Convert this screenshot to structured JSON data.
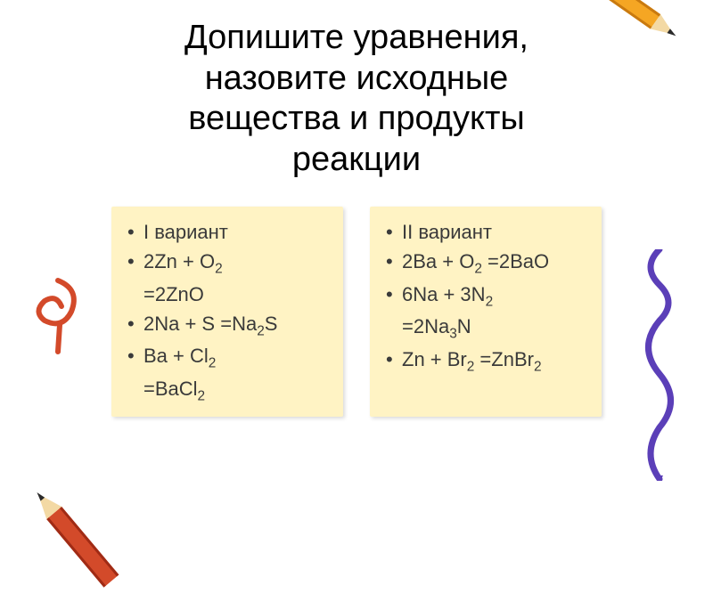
{
  "title_lines": [
    "Допишите уравнения,",
    "назовите исходные",
    "вещества и продукты",
    "реакции"
  ],
  "cards": {
    "left": {
      "variant_label": "I вариант",
      "equations": [
        {
          "pre": "2Zn + O",
          "sub1": "2",
          "mid": " =2ZnO",
          "wrap": true
        },
        {
          "pre": "2Na + S =Na",
          "sub1": "2",
          "mid": "S"
        },
        {
          "pre": "Ba + Cl",
          "sub1": "2",
          "mid": " =BaCl",
          "sub2": "2",
          "wrap": true
        }
      ]
    },
    "right": {
      "variant_label": "II вариант",
      "equations": [
        {
          "pre": "2Ba + O",
          "sub1": "2",
          "mid": " =2BaO"
        },
        {
          "pre": "6Na + 3N",
          "sub1": "2",
          "mid": " =2Na",
          "sub2": "3",
          "tail": "N",
          "wrap": true
        },
        {
          "pre": "Zn + Br",
          "sub1": "2",
          "mid": " =ZnBr",
          "sub2": "2"
        }
      ]
    }
  },
  "style": {
    "background": "#ffffff",
    "card_bg": "#fff3c4",
    "text_color": "#3a3a3a",
    "title_color": "#000000",
    "title_fontsize": 38,
    "body_fontsize": 22,
    "pencil_orange": "#f5a623",
    "pencil_red": "#d34a2a",
    "pencil_tip": "#f3d9a4",
    "pencil_lead": "#2a2a2a",
    "squiggle_color": "#5b3fb8",
    "swirl_color": "#d34a2a"
  }
}
